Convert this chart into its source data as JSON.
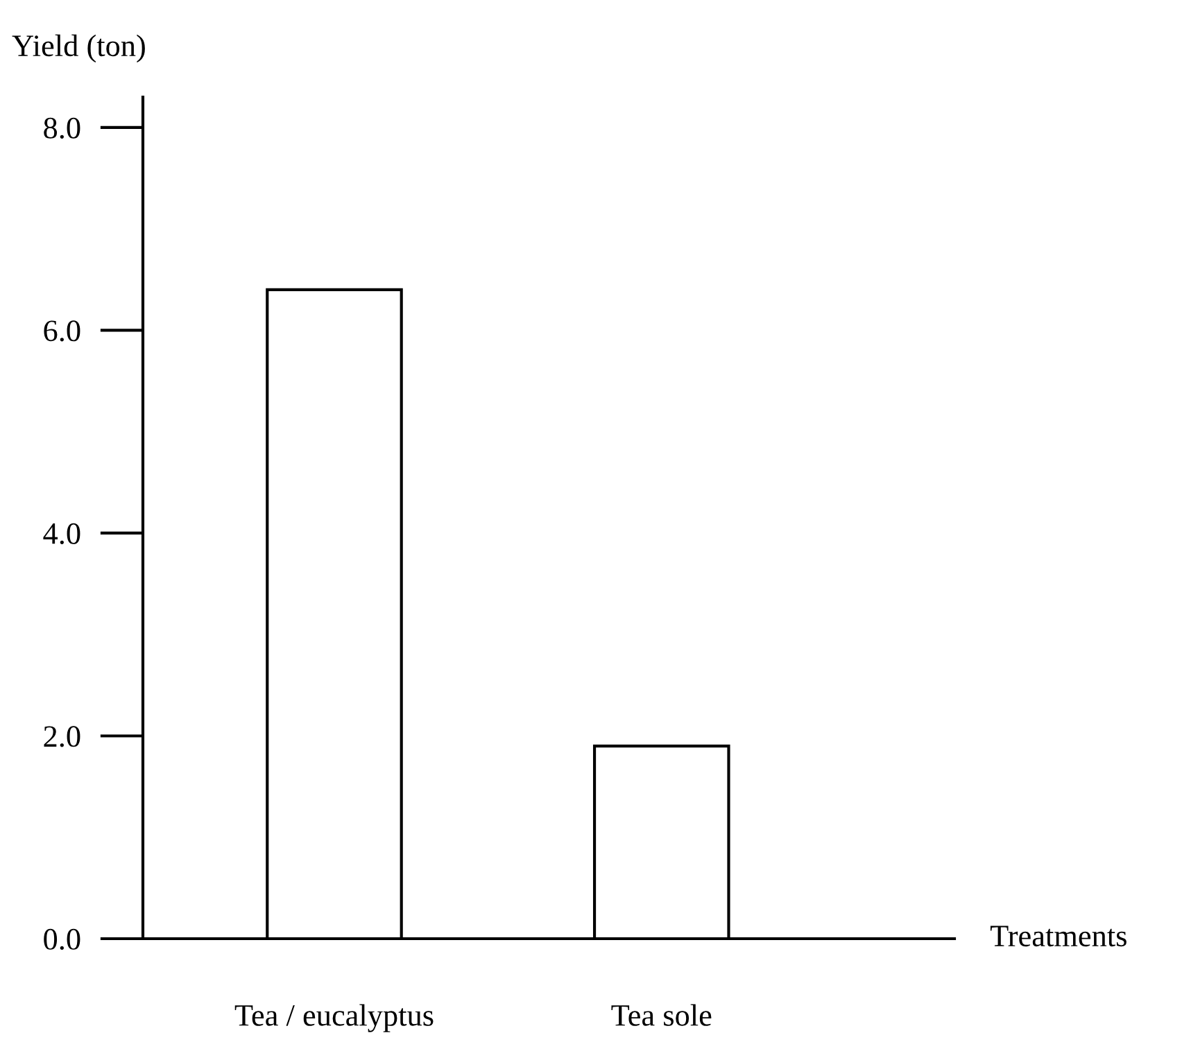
{
  "chart_data": {
    "type": "bar",
    "xlabel": "Treatments",
    "ylabel": "Yield (ton)",
    "categories": [
      "Tea / eucalyptus",
      "Tea sole"
    ],
    "values": [
      6.4,
      1.9
    ],
    "color": "#ffffff",
    "ylim": [
      0,
      8.3
    ],
    "yticks": [
      {
        "value": 0,
        "label": "0.0"
      },
      {
        "value": 2,
        "label": "2.0"
      },
      {
        "value": 4,
        "label": "4.0"
      },
      {
        "value": 6,
        "label": "6.0"
      },
      {
        "value": 8,
        "label": "8.0"
      }
    ],
    "grid": false,
    "legend": false
  }
}
